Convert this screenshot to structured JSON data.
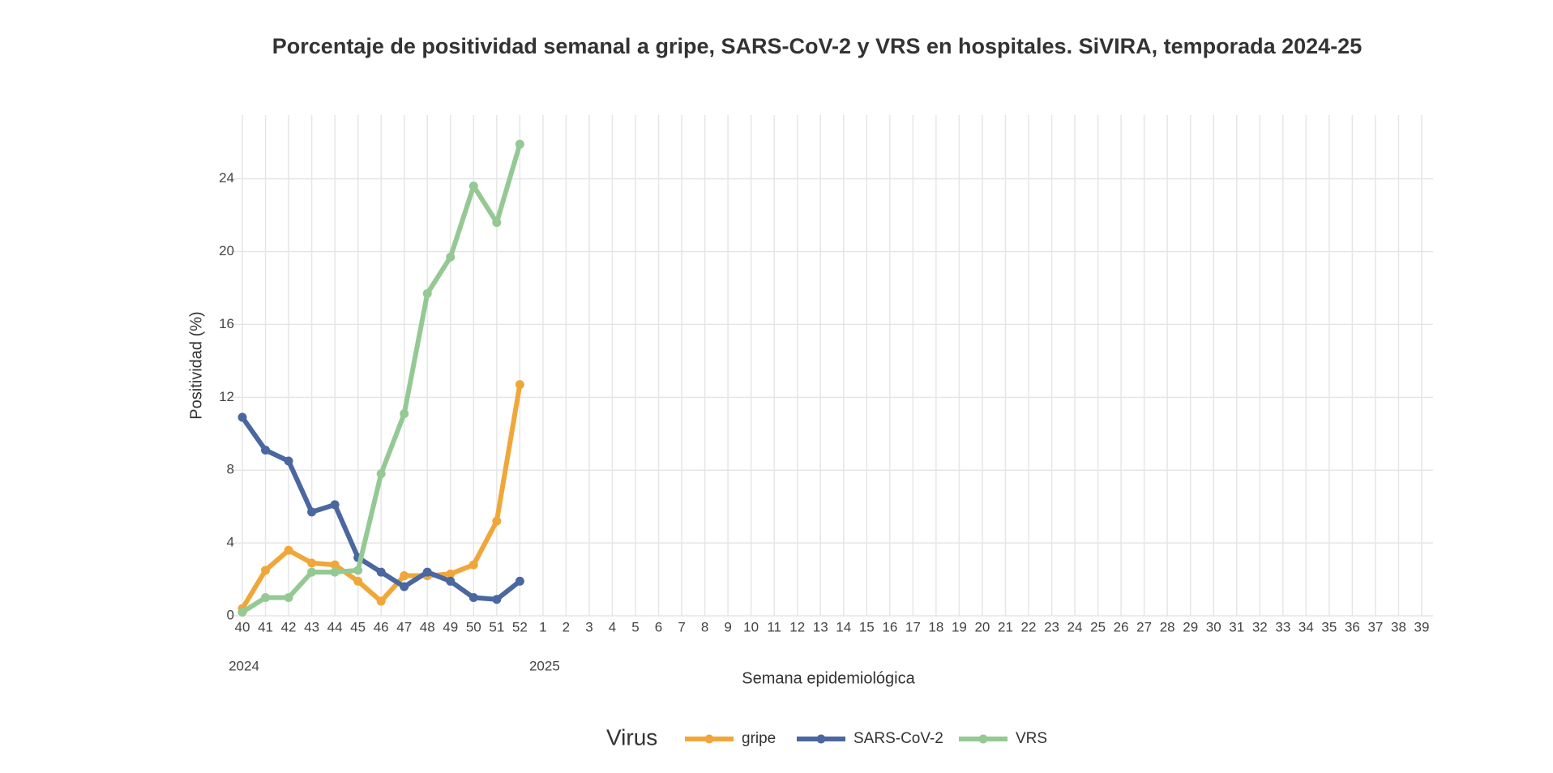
{
  "chart_data": {
    "type": "line",
    "title": "Porcentaje de positividad semanal a gripe, SARS-CoV-2 y VRS en hospitales. SiVIRA, temporada 2024-25",
    "x_label": "Semana epidemiológica",
    "y_label": "Positividad (%)",
    "legend_title": "Virus",
    "legend": "bottom",
    "grid": true,
    "categories": [
      40,
      41,
      42,
      43,
      44,
      45,
      46,
      47,
      48,
      49,
      50,
      51,
      52,
      1,
      2,
      3,
      4,
      5,
      6,
      7,
      8,
      9,
      10,
      11,
      12,
      13,
      14,
      15,
      16,
      17,
      18,
      19,
      20,
      21,
      22,
      23,
      24,
      25,
      26,
      27,
      28,
      29,
      30,
      31,
      32,
      33,
      34,
      35,
      36,
      37,
      38,
      39
    ],
    "annotations": [
      {
        "text": "2024",
        "x": 40
      },
      {
        "text": "2025",
        "x": 1
      }
    ],
    "ylim": [
      0,
      27.5
    ],
    "yticks": [
      0,
      4,
      8,
      12,
      16,
      20,
      24
    ],
    "series": [
      {
        "name": "gripe",
        "color": "#f0a73a",
        "values": [
          0.4,
          2.5,
          3.6,
          2.9,
          2.8,
          1.9,
          0.8,
          2.2,
          2.2,
          2.3,
          2.8,
          5.2,
          12.7,
          null,
          null,
          null,
          null,
          null,
          null,
          null,
          null,
          null,
          null,
          null,
          null,
          null,
          null,
          null,
          null,
          null,
          null,
          null,
          null,
          null,
          null,
          null,
          null,
          null,
          null,
          null,
          null,
          null,
          null,
          null,
          null,
          null,
          null,
          null,
          null,
          null,
          null,
          null
        ]
      },
      {
        "name": "SARS-CoV-2",
        "color": "#4a67a0",
        "values": [
          10.9,
          9.1,
          8.5,
          5.7,
          6.1,
          3.2,
          2.4,
          1.6,
          2.4,
          1.9,
          1.0,
          0.9,
          1.9,
          null,
          null,
          null,
          null,
          null,
          null,
          null,
          null,
          null,
          null,
          null,
          null,
          null,
          null,
          null,
          null,
          null,
          null,
          null,
          null,
          null,
          null,
          null,
          null,
          null,
          null,
          null,
          null,
          null,
          null,
          null,
          null,
          null,
          null,
          null,
          null,
          null,
          null,
          null
        ]
      },
      {
        "name": "VRS",
        "color": "#94c994",
        "values": [
          0.2,
          1.0,
          1.0,
          2.4,
          2.4,
          2.5,
          7.8,
          11.1,
          17.7,
          19.7,
          23.6,
          21.6,
          25.9,
          null,
          null,
          null,
          null,
          null,
          null,
          null,
          null,
          null,
          null,
          null,
          null,
          null,
          null,
          null,
          null,
          null,
          null,
          null,
          null,
          null,
          null,
          null,
          null,
          null,
          null,
          null,
          null,
          null,
          null,
          null,
          null,
          null,
          null,
          null,
          null,
          null,
          null,
          null
        ]
      }
    ]
  }
}
